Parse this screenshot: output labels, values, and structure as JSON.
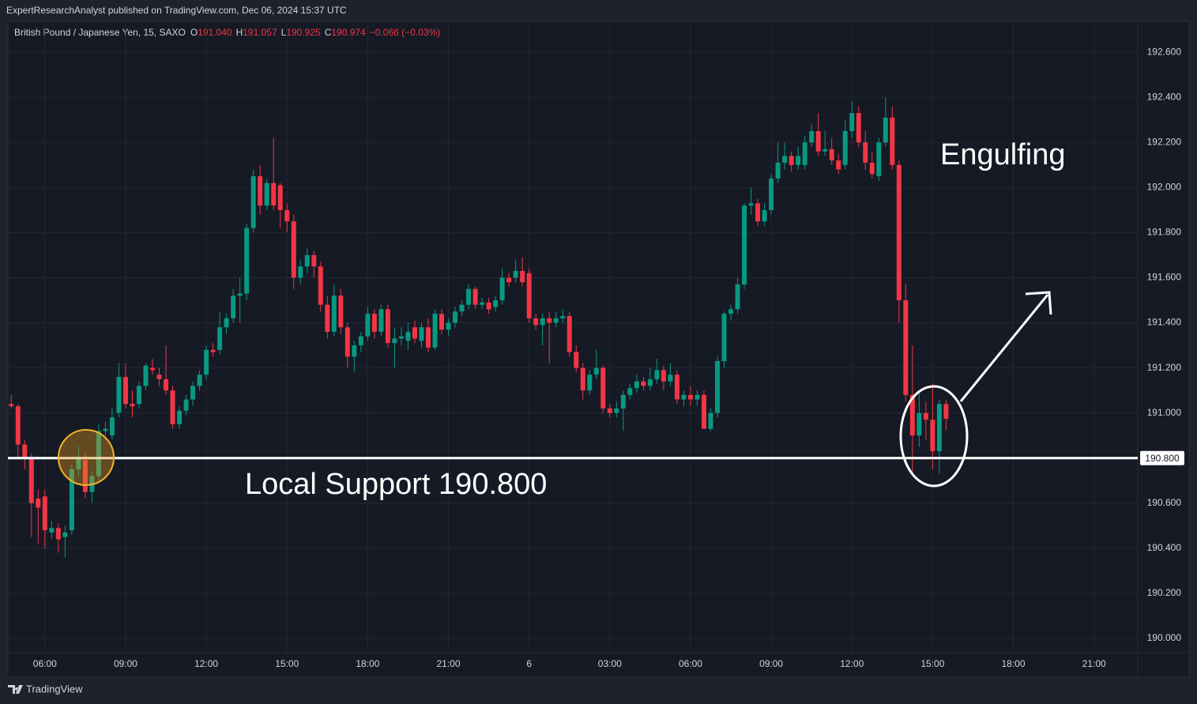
{
  "header": {
    "published": "ExpertResearchAnalyst published on TradingView.com, Dec 06, 2024 15:37 UTC",
    "symbol": "British Pound / Japanese Yen, 15, SAXO",
    "ohlc": [
      {
        "label": "O",
        "value": "191.040"
      },
      {
        "label": "H",
        "value": "191.057"
      },
      {
        "label": "L",
        "value": "190.925"
      },
      {
        "label": "C",
        "value": "190.974"
      }
    ],
    "change": "−0.066 (−0.03%)"
  },
  "footer": {
    "brand": "TradingView"
  },
  "chart_data": {
    "type": "candlestick",
    "up_color": "#089981",
    "down_color": "#f23645",
    "grid": true,
    "ylim": [
      189.937,
      192.737
    ],
    "yticks": [
      {
        "value": 190.0,
        "label": "190.000"
      },
      {
        "value": 190.2,
        "label": "190.200"
      },
      {
        "value": 190.4,
        "label": "190.400"
      },
      {
        "value": 190.6,
        "label": "190.600"
      },
      {
        "value": 190.8,
        "label": "190.800"
      },
      {
        "value": 191.0,
        "label": "191.000"
      },
      {
        "value": 191.2,
        "label": "191.200"
      },
      {
        "value": 191.4,
        "label": "191.400"
      },
      {
        "value": 191.6,
        "label": "191.600"
      },
      {
        "value": 191.8,
        "label": "191.800"
      },
      {
        "value": 192.0,
        "label": "192.000"
      },
      {
        "value": 192.2,
        "label": "192.200"
      },
      {
        "value": 192.4,
        "label": "192.400"
      },
      {
        "value": 192.6,
        "label": "192.600"
      }
    ],
    "categories": [
      null,
      null,
      null,
      null,
      null,
      "06:00",
      null,
      null,
      null,
      null,
      null,
      null,
      null,
      null,
      null,
      null,
      null,
      "09:00",
      null,
      null,
      null,
      null,
      null,
      null,
      null,
      null,
      null,
      null,
      null,
      "12:00",
      null,
      null,
      null,
      null,
      null,
      null,
      null,
      null,
      null,
      null,
      null,
      "15:00",
      null,
      null,
      null,
      null,
      null,
      null,
      null,
      null,
      null,
      null,
      null,
      "18:00",
      null,
      null,
      null,
      null,
      null,
      null,
      null,
      null,
      null,
      null,
      null,
      "21:00",
      null,
      null,
      null,
      null,
      null,
      null,
      null,
      null,
      null,
      null,
      null,
      "6",
      null,
      null,
      null,
      null,
      null,
      null,
      null,
      null,
      null,
      null,
      null,
      "03:00",
      null,
      null,
      null,
      null,
      null,
      null,
      null,
      null,
      null,
      null,
      null,
      "06:00",
      null,
      null,
      null,
      null,
      null,
      null,
      null,
      null,
      null,
      null,
      null,
      "09:00",
      null,
      null,
      null,
      null,
      null,
      null,
      null,
      null,
      null,
      null,
      null,
      "12:00",
      null,
      null,
      null,
      null,
      null,
      null,
      null,
      null,
      null,
      null,
      null,
      "15:00",
      null,
      null,
      null,
      null,
      null,
      null,
      null,
      null,
      null,
      null,
      null,
      "18:00",
      null,
      null,
      null,
      null,
      null,
      null,
      null,
      null,
      null,
      null,
      null,
      "21:00",
      null,
      null,
      null,
      null,
      null,
      null
    ],
    "open": [
      191.04,
      191.03,
      190.86,
      190.8,
      190.62,
      190.63,
      190.47,
      190.49,
      190.45,
      190.48,
      190.75,
      190.79,
      190.65,
      190.72,
      190.92,
      190.9,
      191.0,
      191.16,
      191.04,
      191.04,
      191.12,
      191.2,
      191.17,
      191.15,
      191.1,
      190.95,
      191.01,
      191.06,
      191.12,
      191.17,
      191.28,
      191.28,
      191.38,
      191.42,
      191.52,
      191.53,
      191.82,
      192.05,
      191.92,
      192.02,
      192.01,
      191.9,
      191.85,
      191.6,
      191.65,
      191.7,
      191.65,
      191.48,
      191.36,
      191.52,
      191.38,
      191.25,
      191.3,
      191.34,
      191.44,
      191.36,
      191.46,
      191.31,
      191.33,
      191.32,
      191.38,
      191.32,
      191.38,
      191.29,
      191.44,
      191.37,
      191.4,
      191.45,
      191.48,
      191.55,
      191.48,
      191.49,
      191.47,
      191.5,
      191.6,
      191.6,
      191.63,
      191.62,
      191.42,
      191.39,
      191.42,
      191.4,
      191.42,
      191.43,
      191.27,
      191.2,
      191.1,
      191.17,
      191.2,
      191.02,
      191.0,
      191.02,
      191.08,
      191.11,
      191.14,
      191.12,
      191.15,
      191.19,
      191.14,
      191.17,
      191.06,
      191.08,
      191.06,
      191.08,
      190.93,
      191.0,
      191.23,
      191.44,
      191.46,
      191.57,
      191.92,
      191.93,
      191.85,
      191.9,
      192.04,
      192.11,
      192.14,
      192.1,
      192.1,
      192.2,
      192.25,
      192.16,
      192.17,
      192.12,
      192.1,
      192.25,
      192.33,
      192.2,
      192.11,
      192.05,
      192.2,
      192.31,
      192.1,
      191.5,
      191.08,
      190.9,
      191.0,
      190.97,
      190.83,
      191.04,
      null,
      null,
      null,
      null,
      null,
      null,
      null,
      null,
      null,
      null,
      null,
      null,
      null,
      null,
      null,
      null,
      null,
      null,
      null,
      null,
      null,
      null,
      null,
      null,
      null,
      null,
      null,
      null
    ],
    "high": [
      191.08,
      191.04,
      190.88,
      190.82,
      190.66,
      190.66,
      190.52,
      190.51,
      190.5,
      190.77,
      190.85,
      190.82,
      190.74,
      190.95,
      190.96,
      191.02,
      191.22,
      191.22,
      191.1,
      191.14,
      191.22,
      191.24,
      191.2,
      191.3,
      191.12,
      191.03,
      191.08,
      191.14,
      191.19,
      191.3,
      191.31,
      191.45,
      191.44,
      191.55,
      191.6,
      191.84,
      192.08,
      192.1,
      192.04,
      192.22,
      192.02,
      191.93,
      191.88,
      191.68,
      191.73,
      191.72,
      191.67,
      191.52,
      191.57,
      191.55,
      191.4,
      191.32,
      191.36,
      191.47,
      191.46,
      191.48,
      191.48,
      191.38,
      191.38,
      191.4,
      191.41,
      191.4,
      191.42,
      191.46,
      191.46,
      191.42,
      191.47,
      191.5,
      191.57,
      191.56,
      191.51,
      191.51,
      191.52,
      191.64,
      191.62,
      191.68,
      191.69,
      191.64,
      191.44,
      191.44,
      191.45,
      191.45,
      191.46,
      191.45,
      191.3,
      191.22,
      191.19,
      191.28,
      191.21,
      191.04,
      191.05,
      191.1,
      191.13,
      191.17,
      191.16,
      191.2,
      191.24,
      191.21,
      191.22,
      191.19,
      191.1,
      191.12,
      191.1,
      191.1,
      191.02,
      191.25,
      191.45,
      191.48,
      191.6,
      191.93,
      192.0,
      191.95,
      191.93,
      192.06,
      192.2,
      192.2,
      192.16,
      192.18,
      192.23,
      192.28,
      192.33,
      192.25,
      192.22,
      192.15,
      192.3,
      192.38,
      192.36,
      192.25,
      192.16,
      192.22,
      192.4,
      192.36,
      192.12,
      191.57,
      191.3,
      191.1,
      191.05,
      191.13,
      191.06,
      191.057,
      null,
      null,
      null,
      null,
      null,
      null,
      null,
      null,
      null,
      null,
      null,
      null,
      null,
      null,
      null,
      null,
      null,
      null,
      null,
      null,
      null,
      null,
      null,
      null,
      null,
      null,
      null,
      null
    ],
    "low": [
      191.02,
      190.8,
      190.75,
      190.45,
      190.42,
      190.4,
      190.44,
      190.38,
      190.36,
      190.46,
      190.72,
      190.62,
      190.6,
      190.7,
      190.88,
      190.88,
      190.98,
      191.02,
      190.98,
      191.02,
      191.1,
      191.17,
      191.12,
      191.08,
      190.93,
      190.93,
      190.99,
      191.03,
      191.1,
      191.15,
      191.25,
      191.26,
      191.35,
      191.4,
      191.4,
      191.5,
      191.8,
      191.88,
      191.9,
      191.9,
      191.82,
      191.8,
      191.55,
      191.57,
      191.62,
      191.6,
      191.45,
      191.33,
      191.34,
      191.35,
      191.2,
      191.18,
      191.27,
      191.32,
      191.33,
      191.34,
      191.29,
      191.2,
      191.3,
      191.28,
      191.31,
      191.29,
      191.27,
      191.28,
      191.35,
      191.34,
      191.38,
      191.43,
      191.46,
      191.46,
      191.46,
      191.44,
      191.45,
      191.48,
      191.56,
      191.58,
      191.56,
      191.4,
      191.37,
      191.3,
      191.22,
      191.38,
      191.4,
      191.25,
      191.18,
      191.06,
      191.08,
      191.15,
      191.0,
      190.98,
      190.98,
      190.92,
      191.06,
      191.09,
      191.1,
      191.1,
      191.13,
      191.1,
      191.12,
      191.04,
      191.03,
      191.03,
      191.03,
      190.93,
      190.92,
      190.98,
      191.2,
      191.41,
      191.44,
      191.55,
      191.88,
      191.83,
      191.83,
      191.88,
      192.02,
      192.08,
      192.07,
      192.08,
      192.08,
      192.18,
      192.14,
      192.14,
      192.1,
      192.06,
      192.08,
      192.22,
      192.18,
      192.08,
      192.04,
      192.03,
      192.18,
      192.08,
      191.4,
      191.05,
      190.72,
      190.85,
      190.88,
      190.75,
      190.73,
      190.925,
      null,
      null,
      null,
      null,
      null,
      null,
      null,
      null,
      null,
      null,
      null,
      null,
      null,
      null,
      null,
      null,
      null,
      null,
      null,
      null,
      null,
      null,
      null,
      null,
      null,
      null,
      null,
      null
    ],
    "close": [
      191.03,
      190.86,
      190.8,
      190.6,
      190.58,
      190.48,
      190.49,
      190.44,
      190.47,
      190.75,
      190.8,
      190.65,
      190.72,
      190.92,
      190.93,
      190.98,
      191.16,
      191.04,
      191.03,
      191.12,
      191.21,
      191.19,
      191.15,
      191.1,
      190.95,
      191.01,
      191.06,
      191.12,
      191.17,
      191.28,
      191.27,
      191.38,
      191.42,
      191.52,
      191.53,
      191.82,
      192.05,
      191.92,
      192.02,
      191.92,
      191.9,
      191.85,
      191.6,
      191.65,
      191.7,
      191.65,
      191.48,
      191.36,
      191.52,
      191.38,
      191.25,
      191.3,
      191.34,
      191.44,
      191.36,
      191.46,
      191.31,
      191.33,
      191.34,
      191.36,
      191.33,
      191.38,
      191.29,
      191.44,
      191.37,
      191.4,
      191.45,
      191.48,
      191.55,
      191.48,
      191.49,
      191.46,
      191.5,
      191.6,
      191.58,
      191.63,
      191.58,
      191.42,
      191.39,
      191.42,
      191.4,
      191.42,
      191.43,
      191.27,
      191.2,
      191.1,
      191.17,
      191.2,
      191.02,
      191.0,
      191.02,
      191.08,
      191.11,
      191.14,
      191.12,
      191.15,
      191.19,
      191.14,
      191.17,
      191.06,
      191.08,
      191.06,
      191.08,
      190.93,
      191.0,
      191.23,
      191.44,
      191.46,
      191.57,
      191.92,
      191.93,
      191.85,
      191.9,
      192.04,
      192.11,
      192.14,
      192.1,
      192.14,
      192.2,
      192.25,
      192.16,
      192.17,
      192.12,
      192.08,
      192.25,
      192.33,
      192.2,
      192.11,
      192.06,
      192.2,
      192.31,
      192.1,
      191.5,
      191.08,
      190.9,
      191.0,
      190.97,
      190.83,
      191.04,
      190.974,
      null,
      null,
      null,
      null,
      null,
      null,
      null,
      null,
      null,
      null,
      null,
      null,
      null,
      null,
      null,
      null,
      null,
      null,
      null,
      null,
      null,
      null,
      null,
      null,
      null,
      null,
      null,
      null
    ],
    "support_line": {
      "value": 190.8,
      "label": "190.800"
    },
    "annotations": [
      "Local Support 190.800",
      "Engulfing"
    ]
  }
}
